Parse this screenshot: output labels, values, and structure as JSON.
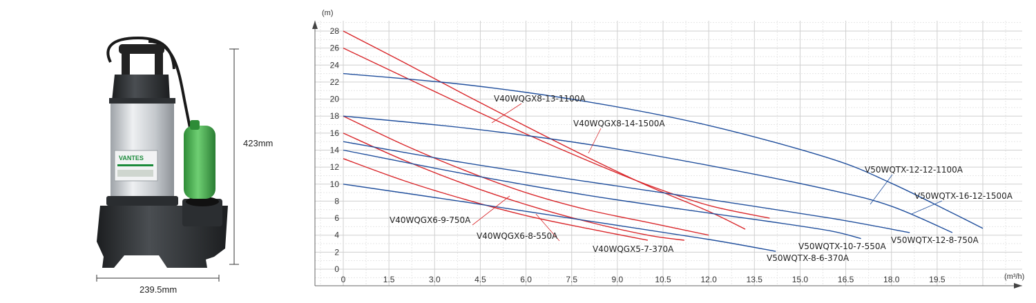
{
  "product": {
    "brand_text": "VANTES",
    "height_label": "423mm",
    "width_label": "239.5mm",
    "colors": {
      "body": "#c8ccd0",
      "base": "#2a2d30",
      "float": "#3fae49"
    }
  },
  "chart_data": {
    "type": "line",
    "title": "",
    "xlabel": "",
    "ylabel": "",
    "x_unit": "(m³/h)",
    "y_unit": "(m)",
    "xlim": [
      0,
      21
    ],
    "ylim": [
      0,
      28
    ],
    "x_ticks": [
      "0",
      "1.5",
      "3.0",
      "4.5",
      "6.0",
      "7.5",
      "9.0",
      "10.5",
      "12.0",
      "13.5",
      "15.0",
      "16.5",
      "18.0",
      "19.5"
    ],
    "y_ticks": [
      "0",
      "2",
      "4",
      "6",
      "8",
      "10",
      "12",
      "14",
      "16",
      "18",
      "20",
      "22",
      "24",
      "26",
      "28"
    ],
    "x_tick_values": [
      0,
      1.5,
      3,
      4.5,
      6,
      7.5,
      9,
      10.5,
      12,
      13.5,
      15,
      16.5,
      18,
      19.5
    ],
    "y_tick_values": [
      0,
      2,
      4,
      6,
      8,
      10,
      12,
      14,
      16,
      18,
      20,
      22,
      24,
      26,
      28
    ],
    "grid": true,
    "series": [
      {
        "name": "V40WQGX8-13-1100A",
        "color": "#d9262a",
        "points": [
          [
            0,
            26
          ],
          [
            2,
            22.6
          ],
          [
            4,
            19.2
          ],
          [
            6,
            15.9
          ],
          [
            8,
            12.8
          ],
          [
            10,
            9.9
          ],
          [
            12,
            7.5
          ],
          [
            14,
            6.0
          ]
        ]
      },
      {
        "name": "V40WQGX8-14-1500A",
        "color": "#d9262a",
        "points": [
          [
            0,
            28
          ],
          [
            2,
            24.3
          ],
          [
            4,
            20.5
          ],
          [
            6,
            16.8
          ],
          [
            8,
            13.2
          ],
          [
            10,
            9.8
          ],
          [
            12,
            6.8
          ],
          [
            13.2,
            4.7
          ]
        ]
      },
      {
        "name": "V40WQGX6-9-750A",
        "color": "#d9262a",
        "points": [
          [
            0,
            18
          ],
          [
            2,
            14.6
          ],
          [
            4,
            11.6
          ],
          [
            6,
            9.0
          ],
          [
            8,
            7.0
          ],
          [
            10,
            5.5
          ],
          [
            12,
            4.0
          ]
        ]
      },
      {
        "name": "V40WQGX6-8-550A",
        "color": "#d9262a",
        "points": [
          [
            0,
            16
          ],
          [
            2,
            12.8
          ],
          [
            4,
            10.0
          ],
          [
            6,
            7.6
          ],
          [
            8,
            5.6
          ],
          [
            10,
            4.0
          ],
          [
            11.2,
            3.4
          ]
        ]
      },
      {
        "name": "V40WQGX5-7-370A",
        "color": "#d9262a",
        "points": [
          [
            0,
            13
          ],
          [
            2,
            10.4
          ],
          [
            4,
            8.2
          ],
          [
            6,
            6.3
          ],
          [
            8,
            4.8
          ],
          [
            10,
            3.4
          ]
        ]
      },
      {
        "name": "V50WQTX-12-12-1100A",
        "color": "#1f4e9c",
        "points": [
          [
            0,
            18
          ],
          [
            4,
            16.6
          ],
          [
            8,
            14.7
          ],
          [
            12,
            12.2
          ],
          [
            16,
            9.3
          ],
          [
            18,
            7.4
          ],
          [
            20,
            4.3
          ]
        ]
      },
      {
        "name": "V50WQTX-16-12-1500A",
        "color": "#1f4e9c",
        "points": [
          [
            0,
            23
          ],
          [
            4,
            21.7
          ],
          [
            8,
            19.7
          ],
          [
            12,
            16.9
          ],
          [
            16,
            13.0
          ],
          [
            18,
            10.1
          ],
          [
            20,
            6.6
          ],
          [
            21,
            4.8
          ]
        ]
      },
      {
        "name": "V50WQTX-12-8-750A",
        "color": "#1f4e9c",
        "points": [
          [
            0,
            15
          ],
          [
            4,
            12.5
          ],
          [
            8,
            10.3
          ],
          [
            12,
            8.2
          ],
          [
            16,
            6.0
          ],
          [
            18.6,
            4.3
          ]
        ]
      },
      {
        "name": "V50WQTX-10-7-550A",
        "color": "#1f4e9c",
        "points": [
          [
            0,
            14
          ],
          [
            4,
            11.2
          ],
          [
            8,
            8.7
          ],
          [
            12,
            6.6
          ],
          [
            14,
            5.6
          ],
          [
            16,
            4.5
          ],
          [
            17,
            3.6
          ]
        ]
      },
      {
        "name": "V50WQTX-8-6-370A",
        "color": "#1f4e9c",
        "points": [
          [
            0,
            10
          ],
          [
            4,
            7.9
          ],
          [
            8,
            5.7
          ],
          [
            12,
            3.5
          ],
          [
            14.2,
            2.1
          ]
        ]
      }
    ],
    "annotations": [
      {
        "text": "V40WQGX8-13-1100A",
        "series": 0
      },
      {
        "text": "V40WQGX8-14-1500A",
        "series": 1
      },
      {
        "text": "V50WQTX-12-12-1100A",
        "series": 5
      },
      {
        "text": "V50WQTX-16-12-1500A",
        "series": 6
      },
      {
        "text": "V40WQGX6-9-750A",
        "series": 2
      },
      {
        "text": "V40WQGX6-8-550A",
        "series": 3
      },
      {
        "text": "V40WQGX5-7-370A",
        "series": 4
      },
      {
        "text": "V50WQTX-10-7-550A",
        "series": 8
      },
      {
        "text": "V50WQTX-12-8-750A",
        "series": 7
      },
      {
        "text": "V50WQTX-8-6-370A",
        "series": 9
      }
    ]
  }
}
